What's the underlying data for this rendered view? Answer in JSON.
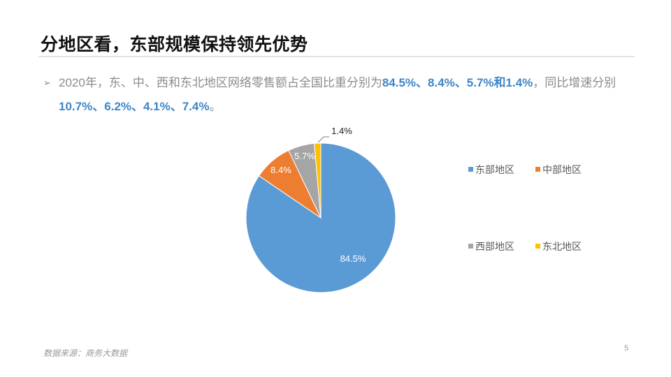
{
  "title": "分地区看，东部规模保持领先优势",
  "bullet": {
    "icon": "arrow-bullet-icon",
    "parts": [
      {
        "text": "2020年，东、中、西和东北地区网络零售额占全国比重分别为",
        "highlight": false
      },
      {
        "text": "84.5%、8.4%、5.7%和1.4%",
        "highlight": true
      },
      {
        "text": "，同比增速分别",
        "highlight": false
      },
      {
        "text": "10.7%、6.2%、4.1%、7.4%",
        "highlight": true
      },
      {
        "text": "。",
        "highlight": false
      }
    ]
  },
  "chart_data": {
    "type": "pie",
    "categories": [
      "东部地区",
      "中部地区",
      "西部地区",
      "东北地区"
    ],
    "values": [
      84.5,
      8.4,
      5.7,
      1.4
    ],
    "data_labels": [
      "84.5%",
      "8.4%",
      "5.7%",
      "1.4%"
    ],
    "colors": [
      "#5b9bd5",
      "#ed7d31",
      "#a5a5a5",
      "#ffc000"
    ],
    "start_angle": "12 o'clock, clockwise",
    "legend_position": "right"
  },
  "footer": {
    "source": "数据来源：商务大数据",
    "page_number": "5"
  }
}
